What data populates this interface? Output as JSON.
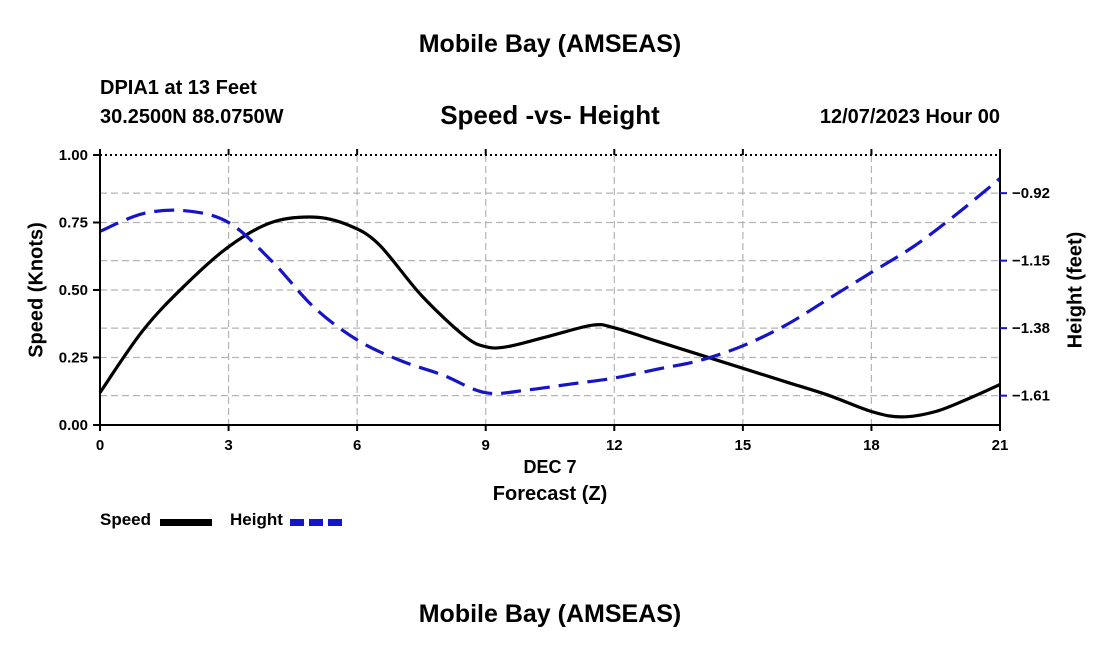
{
  "header": {
    "title": "Mobile Bay (AMSEAS)",
    "station": "DPIA1 at 13 Feet",
    "coords": "30.2500N  88.0750W",
    "date_hour": "12/07/2023 Hour 00"
  },
  "footer": {
    "title": "Mobile Bay (AMSEAS)"
  },
  "legend": {
    "speed_label": "Speed",
    "height_label": "Height"
  },
  "colors": {
    "speed": "#000000",
    "height": "#1515c8",
    "grid": "#b4b4b4"
  },
  "chart_data": {
    "type": "line",
    "title": "Speed -vs- Height",
    "xlabel_date": "DEC 7",
    "xlabel": "Forecast (Z)",
    "ylabel": "Speed (Knots)",
    "y2label": "Height (feet)",
    "xlim": [
      0,
      21
    ],
    "ylim": [
      0,
      1.0
    ],
    "y2lim": [
      -1.71,
      -0.79
    ],
    "x_ticks": [
      0,
      3,
      6,
      9,
      12,
      15,
      18,
      21
    ],
    "x_tick_labels": [
      "0",
      "3",
      "6",
      "9",
      "12",
      "15",
      "18",
      "21"
    ],
    "y_ticks": [
      0,
      0.25,
      0.5,
      0.75,
      1.0
    ],
    "y_tick_labels": [
      "0.00",
      "0.25",
      "0.50",
      "0.75",
      "1.00"
    ],
    "y2_ticks": [
      -1.61,
      -1.38,
      -1.15,
      -0.92
    ],
    "y2_tick_labels": [
      "−1.61",
      "−1.38",
      "−1.15",
      "−0.92"
    ],
    "grid": true,
    "series": [
      {
        "name": "Speed",
        "axis": "left",
        "style": "solid",
        "x": [
          0,
          1,
          2,
          3,
          4,
          5,
          5.8,
          6.5,
          7.5,
          8.5,
          9,
          9.5,
          10.5,
          11.5,
          12,
          13,
          14,
          15,
          16,
          17,
          18,
          18.7,
          19.5,
          20.3,
          21
        ],
        "y": [
          0.12,
          0.35,
          0.52,
          0.66,
          0.75,
          0.77,
          0.74,
          0.67,
          0.48,
          0.33,
          0.29,
          0.29,
          0.33,
          0.37,
          0.36,
          0.31,
          0.26,
          0.21,
          0.16,
          0.11,
          0.05,
          0.03,
          0.05,
          0.1,
          0.15
        ]
      },
      {
        "name": "Height",
        "axis": "right",
        "style": "dashed",
        "x": [
          0,
          1,
          2,
          3,
          4,
          5,
          6,
          7,
          8,
          9,
          10,
          11,
          12,
          13,
          14,
          15,
          16,
          17,
          18,
          19,
          20,
          21
        ],
        "y": [
          -1.05,
          -0.99,
          -0.98,
          -1.02,
          -1.15,
          -1.31,
          -1.42,
          -1.49,
          -1.54,
          -1.6,
          -1.59,
          -1.57,
          -1.55,
          -1.52,
          -1.49,
          -1.44,
          -1.37,
          -1.28,
          -1.19,
          -1.1,
          -0.99,
          -0.87
        ]
      }
    ]
  }
}
